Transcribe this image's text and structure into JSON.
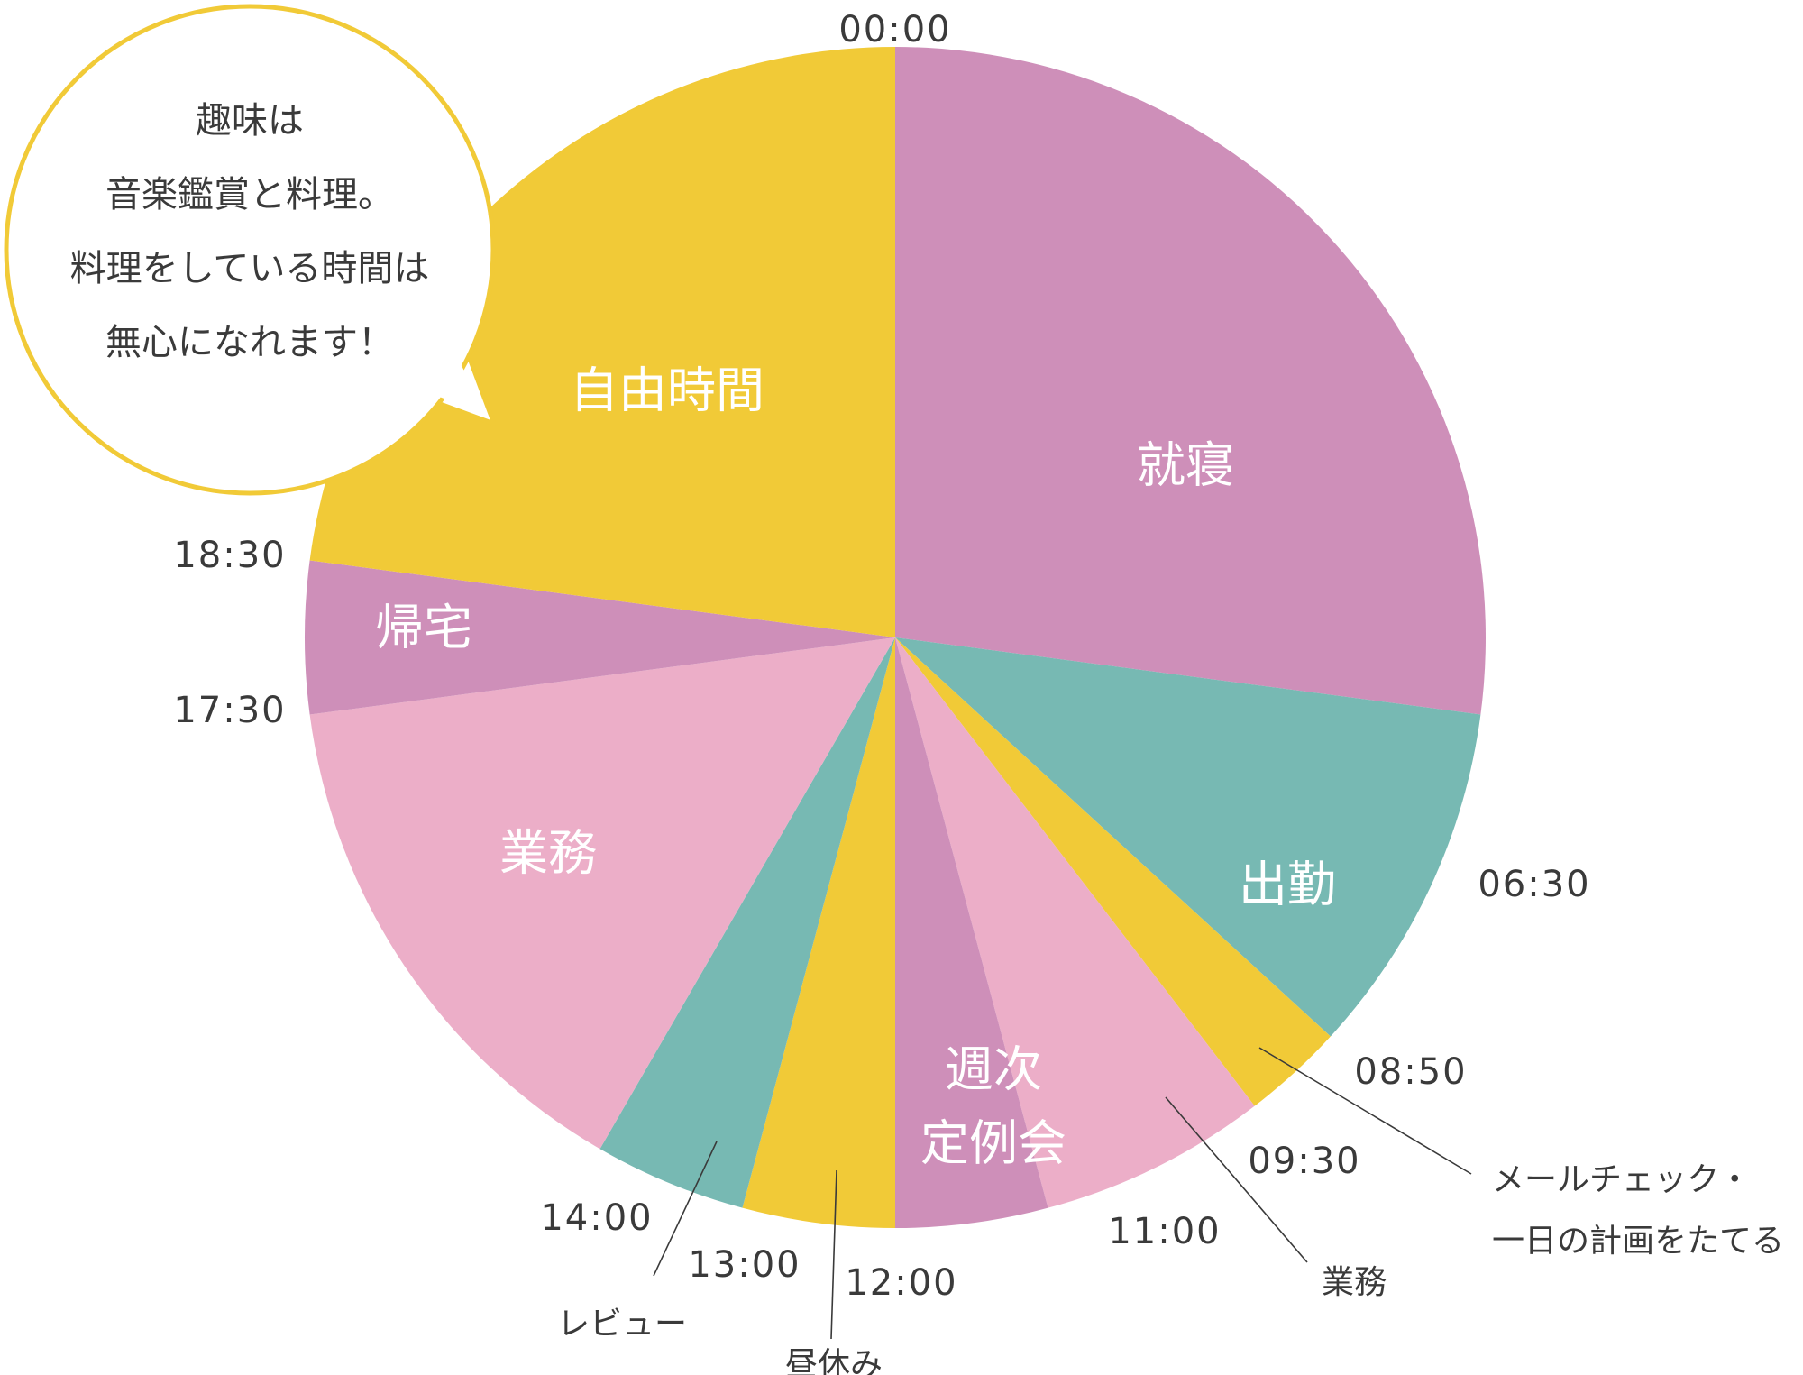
{
  "chart_data": {
    "type": "pie",
    "subtype": "24-hour daily schedule clock",
    "start_at_top": "00:00",
    "direction": "clockwise",
    "slices": [
      {
        "label": "就寝",
        "start": "00:00",
        "end": "06:30",
        "color": "#CE8FB9",
        "label_style": "inside"
      },
      {
        "label": "出勤",
        "start": "06:30",
        "end": "08:50",
        "color": "#77B9B3",
        "label_style": "inside"
      },
      {
        "label": "メールチェック・\n一日の計画をたてる",
        "start": "08:50",
        "end": "09:30",
        "color": "#F1CA37",
        "label_style": "callout"
      },
      {
        "label": "業務",
        "start": "09:30",
        "end": "11:00",
        "color": "#ECAEC8",
        "label_style": "callout"
      },
      {
        "label": "週次\n定例会",
        "start": "11:00",
        "end": "12:00",
        "color": "#CE8FB9",
        "label_style": "inside"
      },
      {
        "label": "昼休み",
        "start": "12:00",
        "end": "13:00",
        "color": "#F1CA37",
        "label_style": "callout"
      },
      {
        "label": "レビュー",
        "start": "13:00",
        "end": "14:00",
        "color": "#77B9B3",
        "label_style": "callout"
      },
      {
        "label": "業務",
        "start": "14:00",
        "end": "17:30",
        "color": "#ECAEC8",
        "label_style": "inside"
      },
      {
        "label": "帰宅",
        "start": "17:30",
        "end": "18:30",
        "color": "#CE8FB9",
        "label_style": "inside"
      },
      {
        "label": "自由時間",
        "start": "18:30",
        "end": "24:00",
        "color": "#F1CA37",
        "label_style": "inside"
      }
    ],
    "time_ticks": [
      "00:00",
      "06:30",
      "08:50",
      "09:30",
      "11:00",
      "12:00",
      "13:00",
      "14:00",
      "17:30",
      "18:30"
    ]
  },
  "speech_bubble": {
    "lines": [
      "趣味は",
      "音楽鑑賞と料理。",
      "料理をしている時間は",
      "無心になれます！"
    ],
    "border_color": "#F1CA37"
  }
}
